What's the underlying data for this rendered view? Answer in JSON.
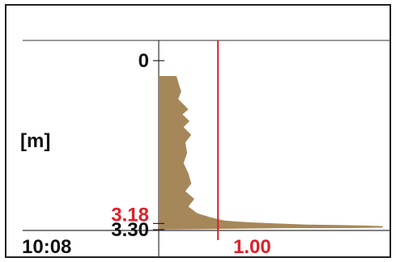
{
  "chart_data": {
    "type": "area",
    "title": "",
    "ylabel": "[m]",
    "xlabel": "",
    "y_axis_direction": "down",
    "y_ticks": [
      {
        "value": 0,
        "label": "0"
      },
      {
        "value": 3.18,
        "label": "3.18",
        "highlight": true
      },
      {
        "value": 3.3,
        "label": "3.30"
      }
    ],
    "ylim": [
      0,
      3.3
    ],
    "time_label": "10:08",
    "reference_line": {
      "value": 1.0,
      "label": "1.00"
    },
    "xlim": [
      0,
      3.8
    ],
    "profile": [
      {
        "x": 0.0,
        "y": 0.3
      },
      {
        "x": 0.3,
        "y": 0.3
      },
      {
        "x": 0.35,
        "y": 0.5
      },
      {
        "x": 0.38,
        "y": 0.6
      },
      {
        "x": 0.33,
        "y": 0.75
      },
      {
        "x": 0.5,
        "y": 0.95
      },
      {
        "x": 0.4,
        "y": 1.05
      },
      {
        "x": 0.52,
        "y": 1.18
      },
      {
        "x": 0.42,
        "y": 1.3
      },
      {
        "x": 0.55,
        "y": 1.45
      },
      {
        "x": 0.45,
        "y": 1.6
      },
      {
        "x": 0.48,
        "y": 1.8
      },
      {
        "x": 0.42,
        "y": 2.0
      },
      {
        "x": 0.5,
        "y": 2.2
      },
      {
        "x": 0.55,
        "y": 2.4
      },
      {
        "x": 0.45,
        "y": 2.55
      },
      {
        "x": 0.6,
        "y": 2.7
      },
      {
        "x": 0.5,
        "y": 2.85
      },
      {
        "x": 0.65,
        "y": 2.98
      },
      {
        "x": 0.85,
        "y": 3.05
      },
      {
        "x": 0.95,
        "y": 3.08
      },
      {
        "x": 1.1,
        "y": 3.12
      },
      {
        "x": 1.3,
        "y": 3.14
      },
      {
        "x": 1.6,
        "y": 3.16
      },
      {
        "x": 2.0,
        "y": 3.18
      },
      {
        "x": 2.5,
        "y": 3.2
      },
      {
        "x": 3.0,
        "y": 3.21
      },
      {
        "x": 3.45,
        "y": 3.22
      },
      {
        "x": 3.78,
        "y": 3.23
      },
      {
        "x": 3.78,
        "y": 3.26
      },
      {
        "x": 3.0,
        "y": 3.27
      },
      {
        "x": 2.2,
        "y": 3.27
      },
      {
        "x": 1.4,
        "y": 3.28
      },
      {
        "x": 0.8,
        "y": 3.29
      },
      {
        "x": 0.0,
        "y": 3.3
      }
    ]
  },
  "colors": {
    "fill": "#A6875A",
    "highlight": "#E0202A",
    "reference": "#E0202A",
    "text": "#111111",
    "axis": "#222222"
  }
}
